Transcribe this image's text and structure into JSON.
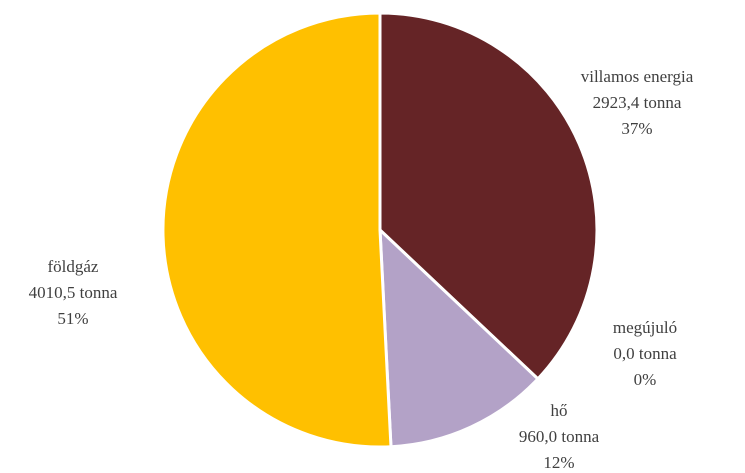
{
  "chart_data": {
    "type": "pie",
    "title": "",
    "slices": [
      {
        "name": "villamos energia",
        "value": 2923.4,
        "value_label": "2923,4 tonna",
        "percent_label": "37%",
        "color": "#652426"
      },
      {
        "name": "megújuló",
        "value": 0.0,
        "value_label": "0,0 tonna",
        "percent_label": "0%",
        "color": "#8FAADC"
      },
      {
        "name": "hő",
        "value": 960.0,
        "value_label": "960,0 tonna",
        "percent_label": "12%",
        "color": "#B3A2C7"
      },
      {
        "name": "földgáz",
        "value": 4010.5,
        "value_label": "4010,5 tonna",
        "percent_label": "51%",
        "color": "#FFC000"
      }
    ],
    "start_angle": "top",
    "direction": "clockwise",
    "legend": "none",
    "slice_border_color": "#ffffff"
  }
}
